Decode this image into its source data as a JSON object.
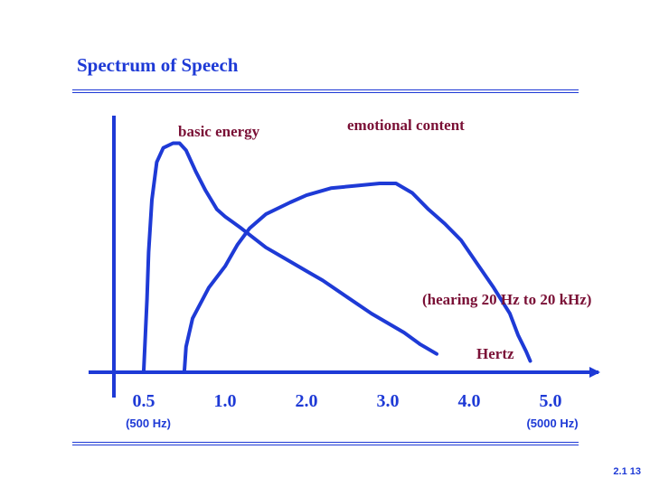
{
  "slide": {
    "title": "Spectrum of Speech",
    "footer": "2.1  13"
  },
  "chart_data": {
    "type": "line",
    "title": "Spectrum of Speech",
    "xlabel": "Hertz",
    "ylabel": "",
    "x_tick_labels": [
      "0.5",
      "1.0",
      "2.0",
      "3.0",
      "4.0",
      "5.0"
    ],
    "x_tick_sublabels": {
      "0.5": "(500 Hz)",
      "5.0": "(5000 Hz)"
    },
    "series": [
      {
        "name": "basic energy",
        "color": "#1e3ad6",
        "points": [
          [
            0.5,
            0.0
          ],
          [
            0.51,
            0.15
          ],
          [
            0.52,
            0.3
          ],
          [
            0.53,
            0.5
          ],
          [
            0.55,
            0.72
          ],
          [
            0.58,
            0.88
          ],
          [
            0.62,
            0.94
          ],
          [
            0.68,
            0.96
          ],
          [
            0.72,
            0.96
          ],
          [
            0.76,
            0.93
          ],
          [
            0.82,
            0.84
          ],
          [
            0.88,
            0.76
          ],
          [
            0.95,
            0.68
          ],
          [
            1.0,
            0.65
          ],
          [
            1.2,
            0.6
          ],
          [
            1.5,
            0.52
          ],
          [
            1.8,
            0.46
          ],
          [
            2.0,
            0.42
          ],
          [
            2.2,
            0.38
          ],
          [
            2.5,
            0.31
          ],
          [
            2.8,
            0.24
          ],
          [
            3.0,
            0.2
          ],
          [
            3.2,
            0.16
          ],
          [
            3.4,
            0.11
          ],
          [
            3.6,
            0.07
          ]
        ]
      },
      {
        "name": "emotional content",
        "color": "#1e3ad6",
        "points": [
          [
            0.75,
            0.0
          ],
          [
            0.76,
            0.1
          ],
          [
            0.8,
            0.22
          ],
          [
            0.9,
            0.35
          ],
          [
            1.0,
            0.44
          ],
          [
            1.15,
            0.53
          ],
          [
            1.3,
            0.6
          ],
          [
            1.5,
            0.66
          ],
          [
            1.8,
            0.71
          ],
          [
            2.0,
            0.74
          ],
          [
            2.3,
            0.77
          ],
          [
            2.6,
            0.78
          ],
          [
            2.9,
            0.79
          ],
          [
            3.1,
            0.79
          ],
          [
            3.3,
            0.75
          ],
          [
            3.5,
            0.68
          ],
          [
            3.7,
            0.62
          ],
          [
            3.9,
            0.55
          ],
          [
            4.1,
            0.45
          ],
          [
            4.3,
            0.35
          ],
          [
            4.5,
            0.24
          ],
          [
            4.6,
            0.15
          ],
          [
            4.7,
            0.08
          ],
          [
            4.75,
            0.04
          ]
        ]
      }
    ],
    "annotations": [
      "basic energy",
      "emotional content",
      "(hearing 20 Hz to 20 kHz)",
      "Hertz"
    ]
  }
}
